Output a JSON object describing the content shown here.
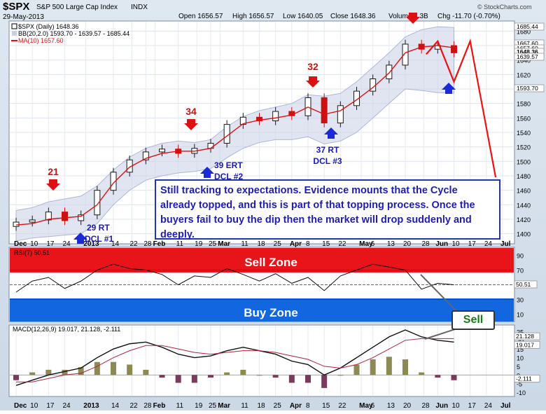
{
  "header": {
    "symbol": "$SPX",
    "name": "S&P 500 Large Cap Index",
    "exchange": "INDX",
    "date": "29-May-2013",
    "open": "Open 1656.57",
    "high": "High 1656.57",
    "low": "Low 1640.05",
    "close": "Close 1648.36",
    "volume": "Volume 2.3B",
    "chg": "Chg -11.70 (-0.70%)",
    "watermark": "© StockCharts.com"
  },
  "legend": {
    "price": "$SPX (Daily) 1648.36",
    "bb": "BB(20,2.0) 1593.70 - 1639.57 - 1685.44",
    "ma": "MA(10) 1657.60"
  },
  "annotations": {
    "comment": "Still tracking to expectations.  Evidence mounts that the Cycle already topped, and this is part of that topping process.  Once the buyers fail to buy the dip then the market will drop suddenly and deeply.",
    "cycle_labels": [
      {
        "text": "21",
        "color": "#cc1111"
      },
      {
        "text": "34",
        "color": "#cc1111"
      },
      {
        "text": "32",
        "color": "#cc1111"
      },
      {
        "text": "29 RT",
        "color": "#1a1ab5"
      },
      {
        "text": "DCL #1",
        "color": "#1a1ab5"
      },
      {
        "text": "39 ERT",
        "color": "#1a1ab5"
      },
      {
        "text": "DCL #2",
        "color": "#1a1ab5"
      },
      {
        "text": "37 RT",
        "color": "#1a1ab5"
      },
      {
        "text": "DCL #3",
        "color": "#1a1ab5"
      }
    ],
    "sell_zone": "Sell Zone",
    "buy_zone": "Buy Zone",
    "sell_signal": "Sell"
  },
  "rsi": {
    "label": "RSI(7) 50.51",
    "value_tag": "50.51",
    "ticks": [
      "90",
      "70",
      "50",
      "30",
      "10"
    ]
  },
  "macd": {
    "label": "MACD(12,26,9) 19.017, 21.128, -2.111",
    "tags": [
      "21.128",
      "19.017",
      "-2.111"
    ],
    "ticks": [
      "25",
      "20",
      "15",
      "10",
      "5",
      "0",
      "-5",
      "-10"
    ]
  },
  "colors": {
    "up": "#1a1a1a",
    "down": "#cc1111",
    "ma": "#dd1111",
    "bb": "#c9cfe6",
    "sell_zone": "#e8141a",
    "buy_zone": "#1266e0",
    "arrow_red": "#dd1111",
    "arrow_blue": "#1a2ad8"
  },
  "chart_data": {
    "type": "line",
    "price_axis": {
      "ticks": [
        1400,
        1420,
        1440,
        1460,
        1480,
        1500,
        1520,
        1540,
        1560,
        1580,
        1600,
        1620,
        1640,
        1660,
        1680
      ],
      "ylim": [
        1388,
        1692
      ]
    },
    "price_tags": [
      "1685.44",
      "1667.60",
      "1657.60",
      "1648.36",
      "1639.57",
      "1593.70"
    ],
    "x_labels": [
      "Dec",
      "10",
      "17",
      "24",
      "2013",
      "14",
      "22",
      "28",
      "Feb",
      "11",
      "19",
      "25",
      "Mar",
      "11",
      "18",
      "25",
      "Apr",
      "8",
      "15",
      "22",
      "May",
      "6",
      "13",
      "20",
      "28",
      "Jun",
      "10",
      "17",
      "24",
      "Jul"
    ],
    "x_dates": [
      "2012-12-03",
      "2012-12-10",
      "2012-12-17",
      "2012-12-24",
      "2013-01-02",
      "2013-01-14",
      "2013-01-22",
      "2013-01-28",
      "2013-02-01",
      "2013-02-11",
      "2013-02-19",
      "2013-02-25",
      "2013-03-01",
      "2013-03-11",
      "2013-03-18",
      "2013-03-25",
      "2013-04-01",
      "2013-04-08",
      "2013-04-15",
      "2013-04-22",
      "2013-05-01",
      "2013-05-06",
      "2013-05-13",
      "2013-05-20",
      "2013-05-28",
      "2013-06-03",
      "2013-06-10",
      "2013-06-17",
      "2013-06-24",
      "2013-07-01"
    ],
    "close_weekly": [
      1416,
      1419,
      1430,
      1418,
      1426,
      1460,
      1485,
      1502,
      1513,
      1517,
      1511,
      1518,
      1525,
      1551,
      1561,
      1556,
      1569,
      1563,
      1588,
      1553,
      1577,
      1597,
      1614,
      1633,
      1662,
      1655,
      1660,
      1650
    ],
    "ma10_weekly": [
      1412,
      1414,
      1420,
      1422,
      1424,
      1440,
      1470,
      1492,
      1504,
      1511,
      1514,
      1514,
      1518,
      1535,
      1552,
      1557,
      1560,
      1564,
      1575,
      1565,
      1570,
      1585,
      1602,
      1622,
      1650,
      1658,
      1660,
      1657
    ],
    "bb_upper_weekly": [
      1432,
      1436,
      1444,
      1448,
      1452,
      1466,
      1488,
      1506,
      1518,
      1525,
      1528,
      1526,
      1530,
      1548,
      1562,
      1570,
      1575,
      1580,
      1592,
      1590,
      1594,
      1610,
      1630,
      1650,
      1672,
      1682,
      1686,
      1685
    ],
    "bb_lower_weekly": [
      1390,
      1394,
      1396,
      1398,
      1400,
      1414,
      1440,
      1460,
      1474,
      1480,
      1484,
      1486,
      1490,
      1505,
      1518,
      1526,
      1530,
      1530,
      1534,
      1524,
      1528,
      1540,
      1560,
      1580,
      1600,
      1598,
      1595,
      1594
    ],
    "projection": [
      {
        "date": "2013-05-29",
        "value": 1648
      },
      {
        "date": "2013-06-03",
        "value": 1666
      },
      {
        "date": "2013-06-10",
        "value": 1610
      },
      {
        "date": "2013-06-17",
        "value": 1666
      },
      {
        "date": "2013-06-28",
        "value": 1478
      }
    ],
    "rsi_weekly": [
      40,
      55,
      60,
      45,
      55,
      70,
      78,
      72,
      70,
      64,
      50,
      62,
      60,
      72,
      64,
      55,
      65,
      52,
      60,
      42,
      62,
      70,
      78,
      74,
      70,
      44,
      52,
      50
    ],
    "macd_weekly": [
      -6,
      -3,
      0,
      2,
      4,
      10,
      15,
      18,
      19,
      16,
      12,
      10,
      11,
      14,
      16,
      14,
      12,
      8,
      6,
      0,
      4,
      10,
      16,
      22,
      26,
      22,
      20,
      19
    ],
    "macd_signal_weekly": [
      -4,
      -4,
      -2,
      0,
      1,
      5,
      10,
      14,
      17,
      17,
      15,
      13,
      12,
      13,
      14,
      14,
      13,
      11,
      9,
      5,
      4,
      6,
      10,
      15,
      20,
      21,
      21,
      21
    ],
    "xlabel": "",
    "ylabel": ""
  }
}
